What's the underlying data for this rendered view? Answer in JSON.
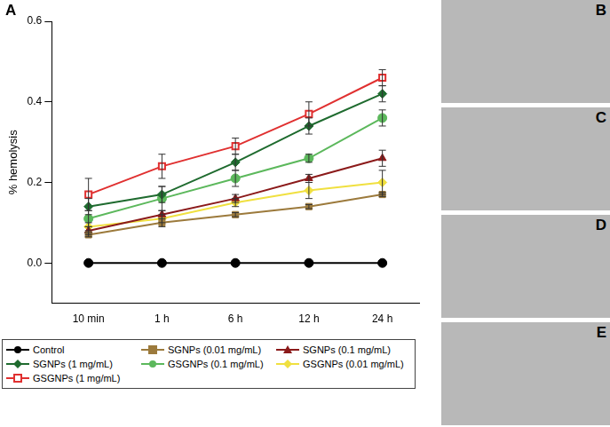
{
  "chart_data": {
    "type": "line",
    "panel_label": "A",
    "y_label": "% hemolysis",
    "categories": [
      "10 min",
      "1 h",
      "6 h",
      "12 h",
      "24 h"
    ],
    "ylim": [
      -0.1,
      0.6
    ],
    "yticks": [
      {
        "value": 0,
        "label": "0.0"
      },
      {
        "value": 0.2,
        "label": "0.2"
      },
      {
        "value": 0.4,
        "label": "0.4"
      },
      {
        "value": 0.6,
        "label": "0.6"
      }
    ],
    "grid": false,
    "legend": "bottom",
    "series": [
      {
        "name": "Control",
        "color": "#000000",
        "marker": "circle",
        "values": [
          0,
          0,
          0,
          0,
          0
        ],
        "errors": [
          0,
          0,
          0,
          0,
          0
        ]
      },
      {
        "name": "SGNPs (0.01 mg/mL)",
        "color": "#9c7a3c",
        "marker": "square",
        "values": [
          0.07,
          0.1,
          0.12,
          0.14,
          0.17
        ],
        "errors": [
          0.005,
          0.01,
          0.005,
          0.005,
          0.005
        ]
      },
      {
        "name": "SGNPs (0.1 mg/mL)",
        "color": "#8b1a1a",
        "marker": "triangle",
        "values": [
          0.08,
          0.12,
          0.16,
          0.21,
          0.26
        ],
        "errors": [
          0.01,
          0.01,
          0.01,
          0.01,
          0.02
        ]
      },
      {
        "name": "SGNPs (1 mg/mL)",
        "color": "#1f6b2f",
        "marker": "diamond",
        "values": [
          0.14,
          0.17,
          0.25,
          0.34,
          0.42
        ],
        "errors": [
          0.02,
          0.02,
          0.02,
          0.02,
          0.02
        ]
      },
      {
        "name": "GSGNPs (0.1 mg/mL)",
        "color": "#5cb85c",
        "marker": "circle",
        "values": [
          0.11,
          0.16,
          0.21,
          0.26,
          0.36
        ],
        "errors": [
          0.02,
          0.03,
          0.02,
          0.01,
          0.02
        ]
      },
      {
        "name": "GSGNPs (0.01 mg/mL)",
        "color": "#f0e040",
        "marker": "diamond",
        "values": [
          0.09,
          0.11,
          0.15,
          0.18,
          0.2
        ],
        "errors": [
          0.01,
          0.01,
          0.01,
          0.02,
          0.03
        ]
      },
      {
        "name": "GSGNPs (1 mg/mL)",
        "color": "#e03030",
        "marker": "square_open",
        "values": [
          0.17,
          0.24,
          0.29,
          0.37,
          0.46
        ],
        "errors": [
          0.04,
          0.03,
          0.02,
          0.03,
          0.02
        ]
      }
    ]
  },
  "image_panels": [
    {
      "label": "B"
    },
    {
      "label": "C"
    },
    {
      "label": "D"
    },
    {
      "label": "E"
    }
  ]
}
